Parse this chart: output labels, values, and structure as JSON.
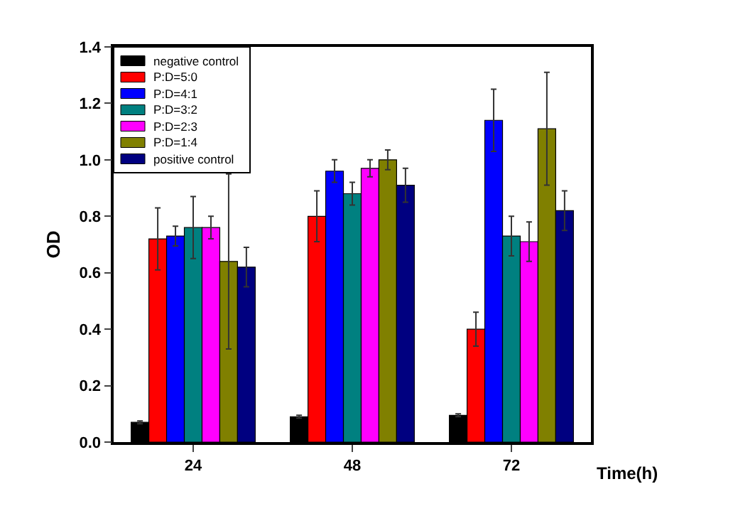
{
  "chart_data": {
    "type": "bar",
    "xlabel": "Time(h)",
    "ylabel": "OD",
    "categories": [
      "24",
      "48",
      "72"
    ],
    "series": [
      {
        "name": "negative control",
        "color": "#000000",
        "values": [
          0.07,
          0.09,
          0.095
        ],
        "errors": [
          0.005,
          0.005,
          0.005
        ]
      },
      {
        "name": "P:D=5:0",
        "color": "#ff0000",
        "values": [
          0.72,
          0.8,
          0.4
        ],
        "errors": [
          0.11,
          0.09,
          0.06
        ]
      },
      {
        "name": "P:D=4:1",
        "color": "#0000ff",
        "values": [
          0.73,
          0.96,
          1.14
        ],
        "errors": [
          0.035,
          0.04,
          0.11
        ]
      },
      {
        "name": "P:D=3:2",
        "color": "#008080",
        "values": [
          0.76,
          0.88,
          0.73
        ],
        "errors": [
          0.11,
          0.04,
          0.07
        ]
      },
      {
        "name": "P:D=2:3",
        "color": "#ff00ff",
        "values": [
          0.76,
          0.97,
          0.71
        ],
        "errors": [
          0.04,
          0.03,
          0.07
        ]
      },
      {
        "name": "P:D=1:4",
        "color": "#808000",
        "values": [
          0.64,
          1.0,
          1.11
        ],
        "errors": [
          0.31,
          0.035,
          0.2
        ]
      },
      {
        "name": "positive control",
        "color": "#000080",
        "values": [
          0.62,
          0.91,
          0.82
        ],
        "errors": [
          0.07,
          0.06,
          0.07
        ]
      }
    ],
    "ylim": [
      0,
      1.4
    ],
    "yticks": [
      {
        "value": 0,
        "label": "0.0"
      },
      0.2,
      0.4,
      0.6,
      0.8,
      {
        "value": 1,
        "label": "1.0"
      },
      1.2,
      1.4
    ],
    "grid": false,
    "legend": "top left"
  }
}
